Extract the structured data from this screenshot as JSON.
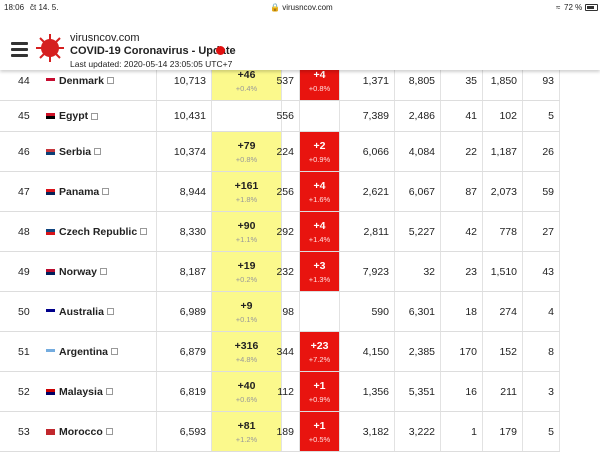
{
  "status_bar": {
    "time": "18:06",
    "date": "čt 14. 5.",
    "url": "virusncov.com",
    "battery": "72 %"
  },
  "header": {
    "site": "virusncov.com",
    "title": "COVID-19 Coronavirus - Update",
    "updated": "Last updated: 2020-05-14 23:05:05 UTC+7"
  },
  "table": {
    "rows": [
      [
        "44",
        "Denmark",
        "10,713",
        "+46",
        "+0.4%",
        "537",
        "+4",
        "+0.8%",
        "1,371",
        "8,805",
        "35",
        "1,850",
        "93"
      ],
      [
        "45",
        "Egypt",
        "10,431",
        null,
        null,
        "556",
        null,
        null,
        "7,389",
        "2,486",
        "41",
        "102",
        "5"
      ],
      [
        "46",
        "Serbia",
        "10,374",
        "+79",
        "+0.8%",
        "224",
        "+2",
        "+0.9%",
        "6,066",
        "4,084",
        "22",
        "1,187",
        "26"
      ],
      [
        "47",
        "Panama",
        "8,944",
        "+161",
        "+1.8%",
        "256",
        "+4",
        "+1.6%",
        "2,621",
        "6,067",
        "87",
        "2,073",
        "59"
      ],
      [
        "48",
        "Czech Republic",
        "8,330",
        "+90",
        "+1.1%",
        "292",
        "+4",
        "+1.4%",
        "2,811",
        "5,227",
        "42",
        "778",
        "27"
      ],
      [
        "49",
        "Norway",
        "8,187",
        "+19",
        "+0.2%",
        "232",
        "+3",
        "+1.3%",
        "7,923",
        "32",
        "23",
        "1,510",
        "43"
      ],
      [
        "50",
        "Australia",
        "6,989",
        "+9",
        "+0.1%",
        "98",
        null,
        null,
        "590",
        "6,301",
        "18",
        "274",
        "4"
      ],
      [
        "51",
        "Argentina",
        "6,879",
        "+316",
        "+4.8%",
        "344",
        "+23",
        "+7.2%",
        "4,150",
        "2,385",
        "170",
        "152",
        "8"
      ],
      [
        "52",
        "Malaysia",
        "6,819",
        "+40",
        "+0.6%",
        "112",
        "+1",
        "+0.9%",
        "1,356",
        "5,351",
        "16",
        "211",
        "3"
      ],
      [
        "53",
        "Morocco",
        "6,593",
        "+81",
        "+1.2%",
        "189",
        "+1",
        "+0.5%",
        "3,182",
        "3,222",
        "1",
        "179",
        "5"
      ]
    ]
  }
}
